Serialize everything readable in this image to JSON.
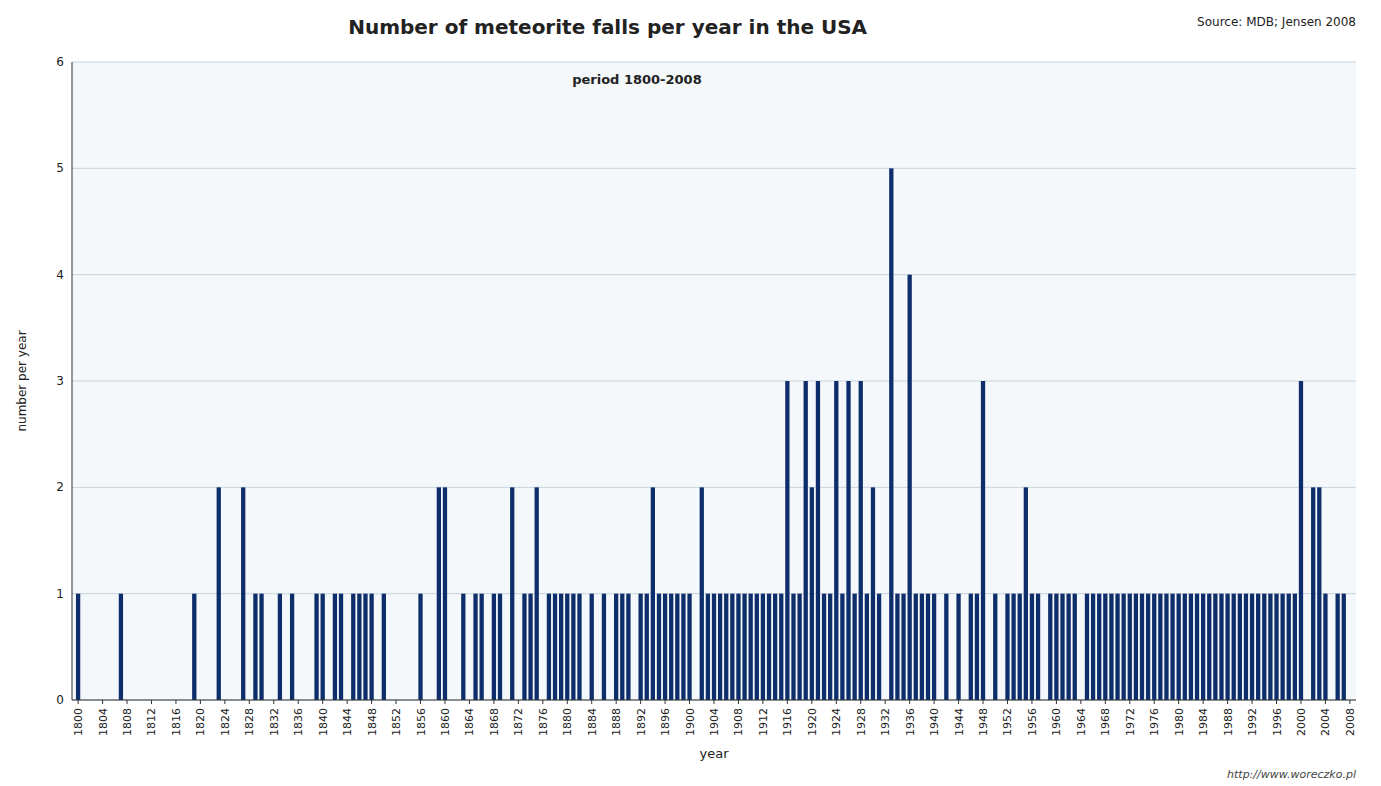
{
  "chart_data": {
    "type": "bar",
    "title": "Number of meteorite falls per year in the USA",
    "subtitle": "period 1800-2008",
    "annotations": [
      "Source: MDB; Jensen 2008",
      "http://www.woreczko.pl"
    ],
    "x_label": "year",
    "y_label": "number per year",
    "x": [
      1800,
      1807,
      1819,
      1823,
      1827,
      1829,
      1830,
      1833,
      1835,
      1839,
      1840,
      1842,
      1843,
      1845,
      1846,
      1847,
      1848,
      1850,
      1856,
      1859,
      1860,
      1863,
      1865,
      1866,
      1868,
      1869,
      1871,
      1873,
      1874,
      1875,
      1877,
      1878,
      1879,
      1880,
      1881,
      1882,
      1884,
      1886,
      1888,
      1889,
      1890,
      1892,
      1893,
      1894,
      1895,
      1896,
      1897,
      1898,
      1899,
      1900,
      1902,
      1903,
      1904,
      1905,
      1906,
      1907,
      1908,
      1909,
      1910,
      1911,
      1912,
      1913,
      1914,
      1915,
      1916,
      1917,
      1918,
      1919,
      1920,
      1921,
      1922,
      1923,
      1924,
      1925,
      1926,
      1927,
      1928,
      1929,
      1930,
      1931,
      1933,
      1934,
      1935,
      1936,
      1937,
      1938,
      1939,
      1940,
      1942,
      1944,
      1946,
      1947,
      1948,
      1950,
      1952,
      1953,
      1954,
      1955,
      1956,
      1957,
      1959,
      1960,
      1961,
      1962,
      1963,
      1965,
      1966,
      1967,
      1968,
      1969,
      1970,
      1971,
      1972,
      1973,
      1974,
      1975,
      1976,
      1977,
      1978,
      1979,
      1980,
      1981,
      1982,
      1983,
      1984,
      1985,
      1986,
      1987,
      1988,
      1989,
      1990,
      1991,
      1992,
      1993,
      1994,
      1995,
      1996,
      1997,
      1998,
      1999,
      2000,
      2002,
      2003,
      2004,
      2006,
      2007
    ],
    "values": [
      1,
      1,
      1,
      2,
      2,
      1,
      1,
      1,
      1,
      1,
      1,
      1,
      1,
      1,
      1,
      1,
      1,
      1,
      1,
      2,
      2,
      1,
      1,
      1,
      1,
      1,
      2,
      1,
      1,
      2,
      1,
      1,
      1,
      1,
      1,
      1,
      1,
      1,
      1,
      1,
      1,
      1,
      1,
      2,
      1,
      1,
      1,
      1,
      1,
      1,
      2,
      1,
      1,
      1,
      1,
      1,
      1,
      1,
      1,
      1,
      1,
      1,
      1,
      1,
      3,
      1,
      1,
      3,
      2,
      3,
      1,
      1,
      3,
      1,
      3,
      1,
      3,
      1,
      2,
      1,
      5,
      1,
      1,
      4,
      1,
      1,
      1,
      1,
      1,
      1,
      1,
      1,
      3,
      1,
      1,
      1,
      1,
      2,
      1,
      1,
      1,
      1,
      1,
      1,
      1,
      1,
      1,
      1,
      1,
      1,
      1,
      1,
      1,
      1,
      1,
      1,
      1,
      1,
      1,
      1,
      1,
      1,
      1,
      1,
      1,
      1,
      1,
      1,
      1,
      1,
      1,
      1,
      1,
      1,
      1,
      1,
      1,
      1,
      1,
      1,
      3,
      2,
      2,
      1,
      1,
      1
    ],
    "color": "#0d2d6b",
    "xlim": [
      1799,
      2009
    ],
    "xticks": [
      1800,
      1804,
      1808,
      1812,
      1816,
      1820,
      1824,
      1828,
      1832,
      1836,
      1840,
      1844,
      1848,
      1852,
      1856,
      1860,
      1864,
      1868,
      1872,
      1876,
      1880,
      1884,
      1888,
      1892,
      1896,
      1900,
      1904,
      1908,
      1912,
      1916,
      1920,
      1924,
      1928,
      1932,
      1936,
      1940,
      1944,
      1948,
      1952,
      1956,
      1960,
      1964,
      1968,
      1972,
      1976,
      1980,
      1984,
      1988,
      1992,
      1996,
      2000,
      2004,
      2008
    ],
    "ylim": [
      0,
      6
    ],
    "yticks": [
      0,
      1,
      2,
      3,
      4,
      5,
      6
    ],
    "grid": true
  }
}
